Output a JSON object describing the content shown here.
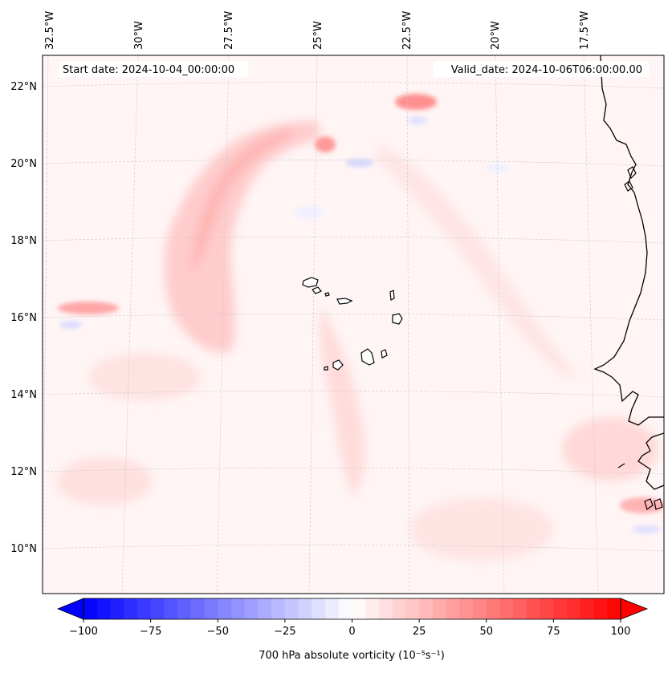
{
  "map": {
    "start_label": "Start date: 2024-10-04_00:00:00",
    "valid_label": "Valid_date: 2024-10-06T06:00:00.00",
    "lon_labels": [
      "32.5°W",
      "30°W",
      "27.5°W",
      "25°W",
      "22.5°W",
      "20°W",
      "17.5°W"
    ],
    "lat_labels": [
      "22°N",
      "20°N",
      "18°N",
      "16°N",
      "14°N",
      "12°N",
      "10°N"
    ],
    "colors": {
      "negative": "#0000ff",
      "neutral": "#ffffff",
      "positive": "#ff0000",
      "coast": "#000000",
      "grid": "#c8c8c8"
    }
  },
  "colorbar": {
    "label": "700 hPa absolute vorticity (10⁻⁵s⁻¹)",
    "min": -100,
    "max": 100,
    "ticks": [
      {
        "value": -100,
        "label": "−100"
      },
      {
        "value": -75,
        "label": "−75"
      },
      {
        "value": -50,
        "label": "−50"
      },
      {
        "value": -25,
        "label": "−25"
      },
      {
        "value": 0,
        "label": "0"
      },
      {
        "value": 25,
        "label": "25"
      },
      {
        "value": 50,
        "label": "50"
      },
      {
        "value": 75,
        "label": "75"
      },
      {
        "value": 100,
        "label": "100"
      }
    ]
  }
}
